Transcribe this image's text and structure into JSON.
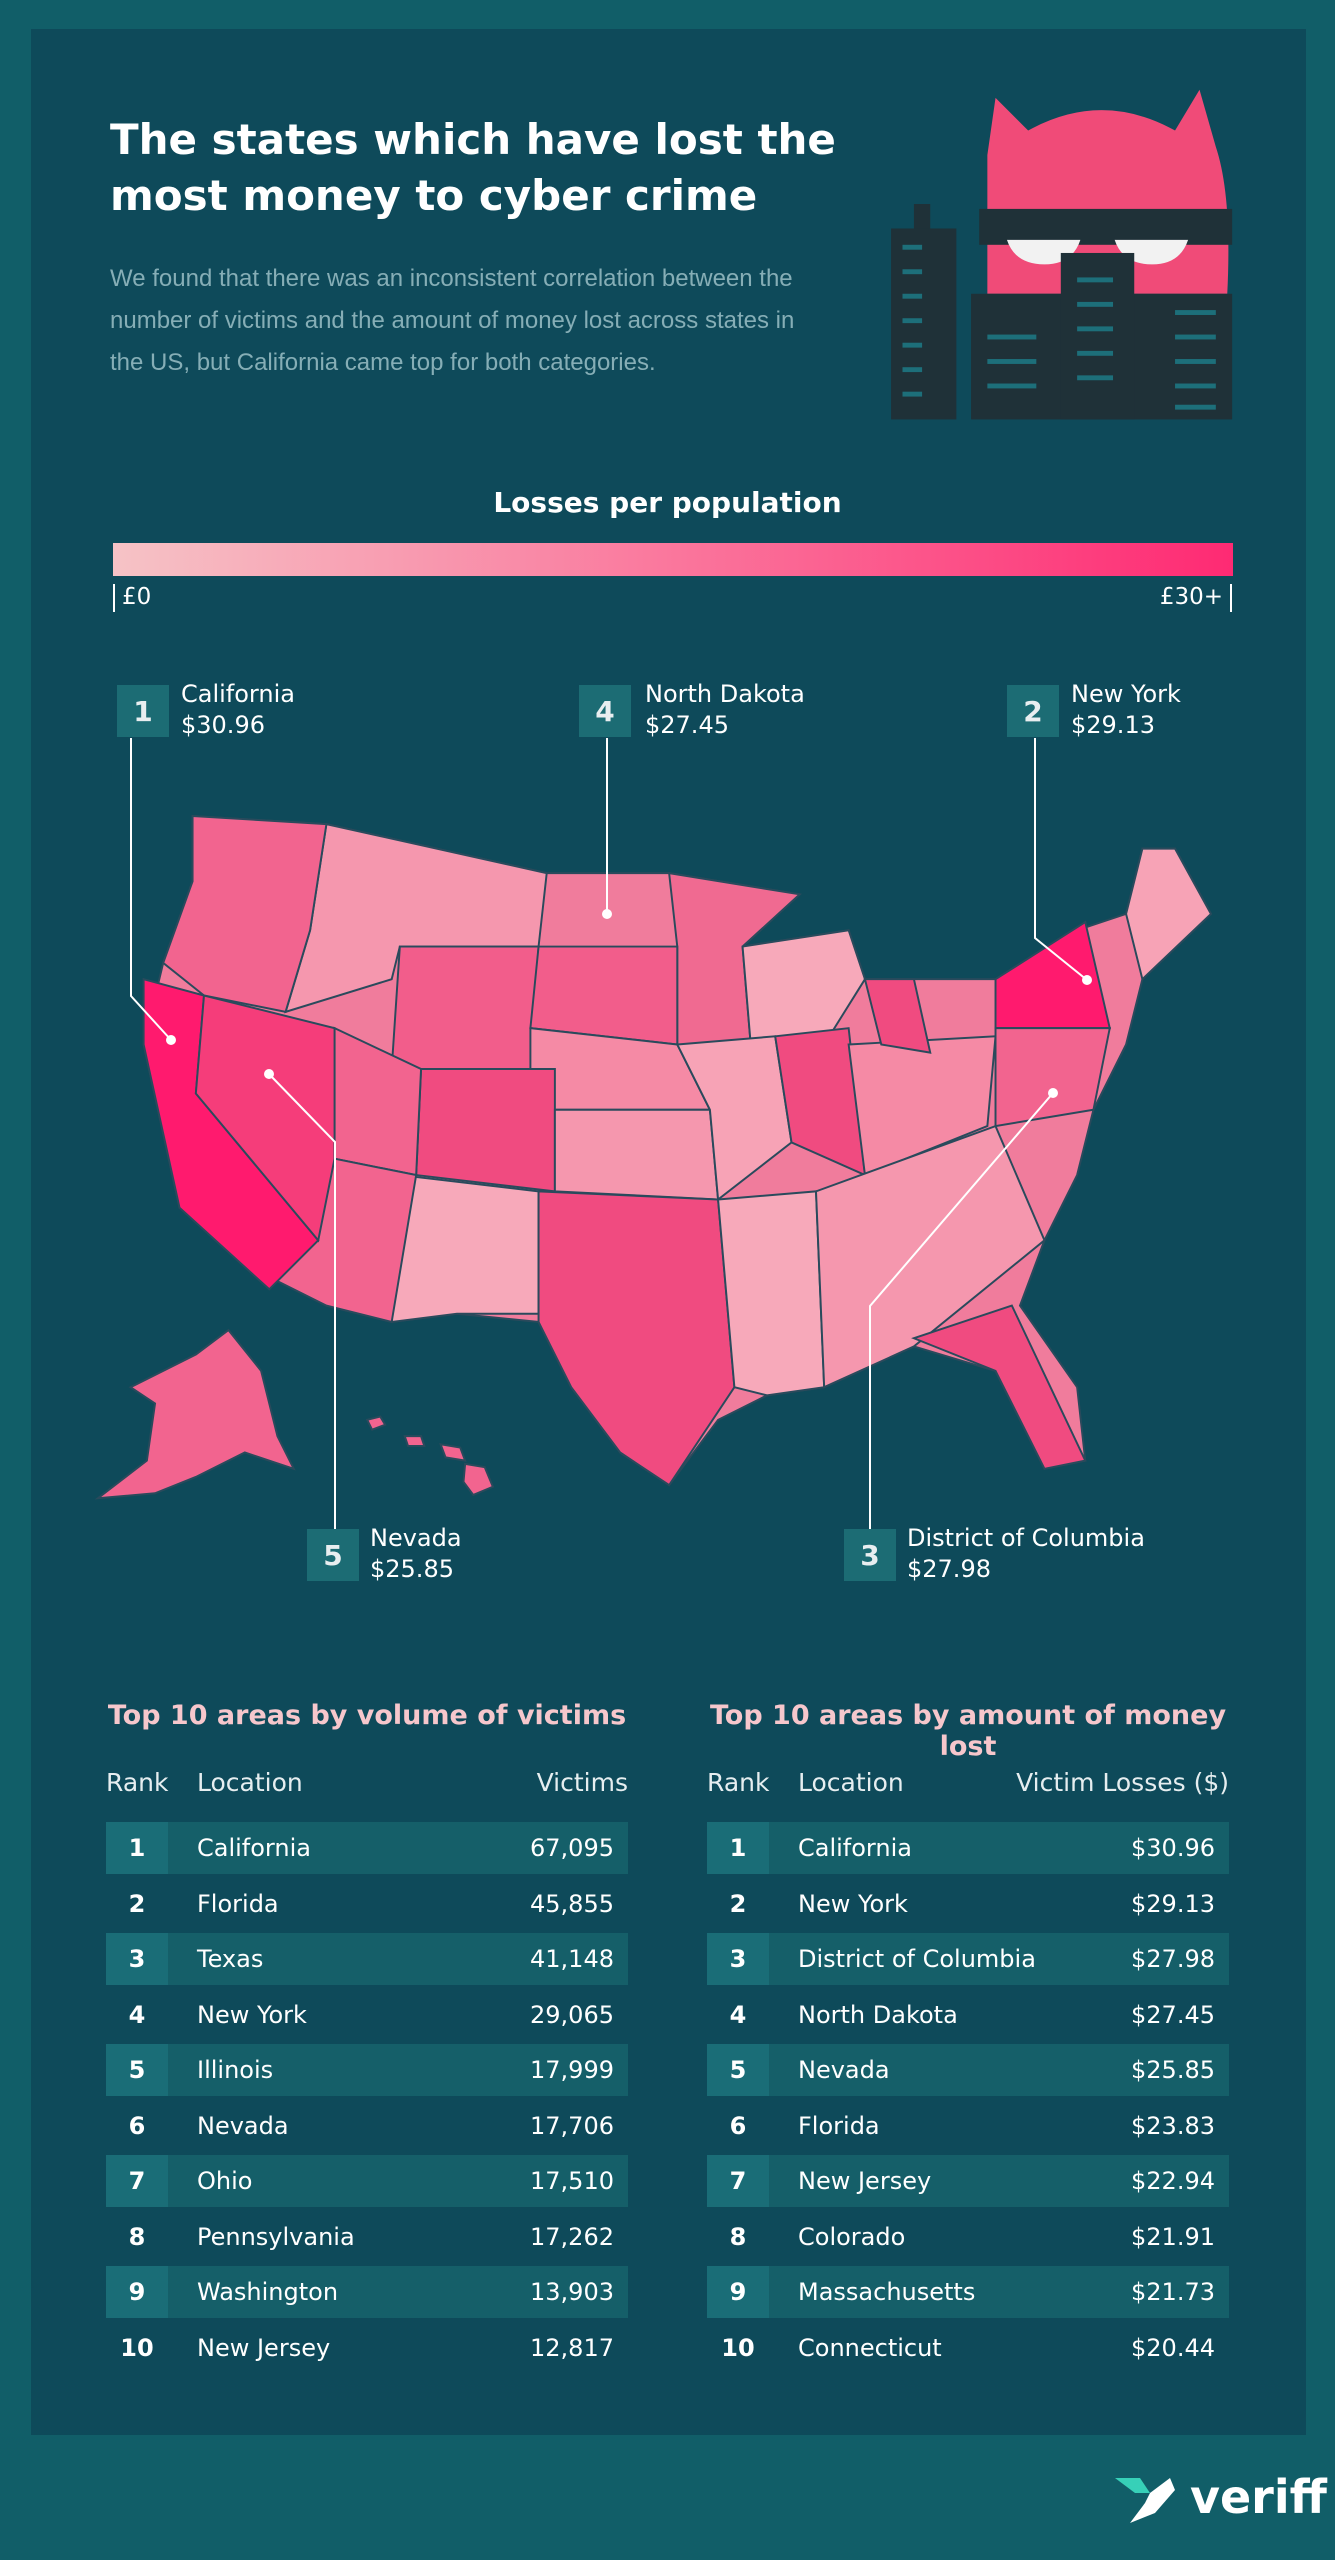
{
  "header": {
    "title": "The states which have lost the most money to cyber crime",
    "description": "We found that there was an inconsistent correlation between the number of victims and the amount of money lost across states in the US, but California came top for both categories."
  },
  "legend": {
    "title": "Losses per population",
    "min_label": "£0",
    "max_label": "£30+"
  },
  "callouts": [
    {
      "rank": 1,
      "location": "California",
      "value": "$30.96"
    },
    {
      "rank": 4,
      "location": "North Dakota",
      "value": "$27.45"
    },
    {
      "rank": 2,
      "location": "New York",
      "value": "$29.13"
    },
    {
      "rank": 5,
      "location": "Nevada",
      "value": "$25.85"
    },
    {
      "rank": 3,
      "location": "District of Columbia",
      "value": "$27.98"
    }
  ],
  "tables": [
    {
      "title": "Top 10 areas by volume of victims",
      "columns": [
        "Rank",
        "Location",
        "Victims"
      ],
      "rows": [
        [
          1,
          "California",
          "67,095"
        ],
        [
          2,
          "Florida",
          "45,855"
        ],
        [
          3,
          "Texas",
          "41,148"
        ],
        [
          4,
          "New York",
          "29,065"
        ],
        [
          5,
          "Illinois",
          "17,999"
        ],
        [
          6,
          "Nevada",
          "17,706"
        ],
        [
          7,
          "Ohio",
          "17,510"
        ],
        [
          8,
          "Pennsylvania",
          "17,262"
        ],
        [
          9,
          "Washington",
          "13,903"
        ],
        [
          10,
          "New Jersey",
          "12,817"
        ]
      ]
    },
    {
      "title": "Top 10 areas by amount of money lost",
      "columns": [
        "Rank",
        "Location",
        "Victim Losses ($)"
      ],
      "rows": [
        [
          1,
          "California",
          "$30.96"
        ],
        [
          2,
          "New York",
          "$29.13"
        ],
        [
          3,
          "District of Columbia",
          "$27.98"
        ],
        [
          4,
          "North Dakota",
          "$27.45"
        ],
        [
          5,
          "Nevada",
          "$25.85"
        ],
        [
          6,
          "Florida",
          "$23.83"
        ],
        [
          7,
          "New Jersey",
          "$22.94"
        ],
        [
          8,
          "Colorado",
          "$21.91"
        ],
        [
          9,
          "Massachusetts",
          "$21.73"
        ],
        [
          10,
          "Connecticut",
          "$20.44"
        ]
      ]
    }
  ],
  "footer": {
    "brand": "veriff"
  }
}
